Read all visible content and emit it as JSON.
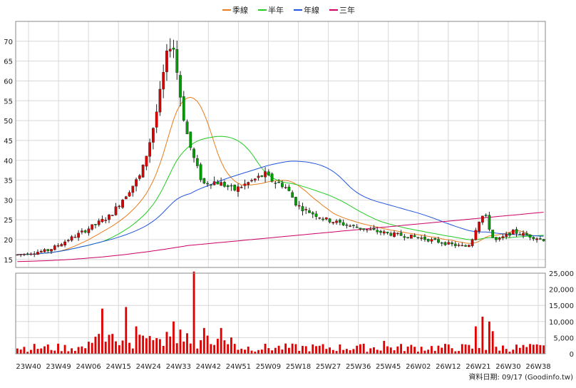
{
  "chart_data": [
    {
      "type": "candlestick",
      "title": "",
      "ylim": [
        13,
        75
      ],
      "y_ticks": [
        "70",
        "65",
        "60",
        "55",
        "50",
        "45",
        "40",
        "35",
        "30",
        "25",
        "20",
        "15"
      ],
      "y_tick_values": [
        70,
        65,
        60,
        55,
        50,
        45,
        40,
        35,
        30,
        25,
        20,
        15
      ],
      "x_ticks": [
        "23W40",
        "23W49",
        "24W06",
        "24W15",
        "24W24",
        "24W33",
        "24W42",
        "24W51",
        "25W09",
        "25W18",
        "25W27",
        "25W36",
        "25W45",
        "26W02",
        "26W12",
        "26W21",
        "26W30",
        "26W38"
      ],
      "grid": true,
      "legend_position": "top-center",
      "candle_colors": {
        "up": "#e00000",
        "down": "#00a000"
      },
      "ohlc_keypoints": {
        "weeks": [
          "23W40",
          "23W49",
          "24W06",
          "24W15",
          "24W24",
          "24W33",
          "24W42",
          "24W51",
          "25W09",
          "25W18",
          "25W27",
          "25W36",
          "25W45",
          "26W02",
          "26W12",
          "26W21",
          "26W30",
          "26W38"
        ],
        "close": [
          16.2,
          17.3,
          21.5,
          26.0,
          36.5,
          66.0,
          37.0,
          32.5,
          36.5,
          28.5,
          25.0,
          23.0,
          21.5,
          20.5,
          18.8,
          17.5,
          22.0,
          20.0
        ]
      },
      "series": [
        {
          "name": "季線",
          "color": "#e87c1e"
        },
        {
          "name": "半年",
          "color": "#22cc22"
        },
        {
          "name": "年線",
          "color": "#2255dd"
        },
        {
          "name": "三年",
          "color": "#cc0066"
        }
      ]
    },
    {
      "type": "bar",
      "ylim": [
        0,
        25000
      ],
      "y_ticks": [
        "25,000",
        "20,000",
        "15,000",
        "10,000",
        "5,000",
        "0"
      ],
      "y_tick_values": [
        25000,
        20000,
        15000,
        10000,
        5000,
        0
      ],
      "bar_color": "#e00000",
      "volume_keypoints": {
        "weeks": [
          "24W10",
          "24W13",
          "24W24",
          "24W33",
          "24W42",
          "26W24",
          "26W26"
        ],
        "values": [
          14000,
          14500,
          10000,
          25500,
          8000,
          8500,
          11500
        ]
      }
    }
  ],
  "footer": {
    "source": "資料日期: 09/17  (Goodinfo.tw)"
  }
}
